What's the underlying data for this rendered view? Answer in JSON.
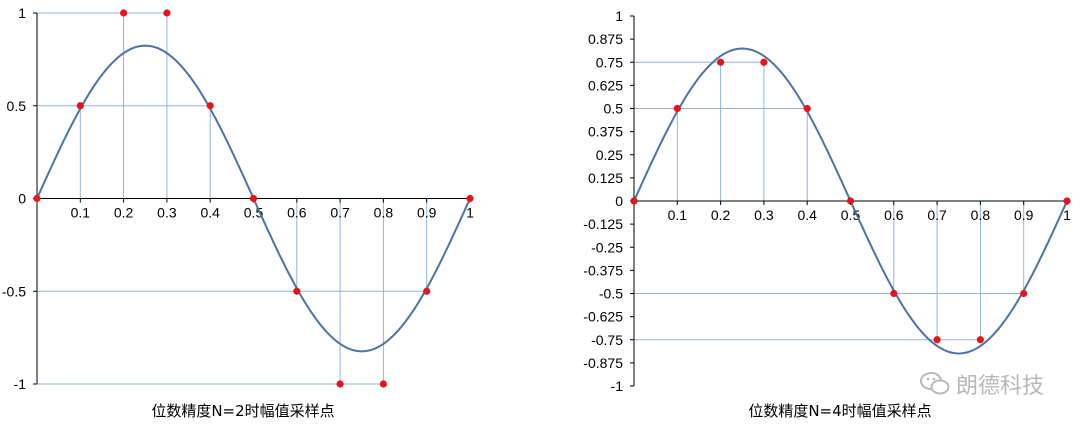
{
  "chart_data": [
    {
      "type": "line",
      "title": "位数精度N=2时幅值采样点",
      "series": [
        {
          "x": [
            0,
            0.05,
            0.1,
            0.15,
            0.2,
            0.25,
            0.3,
            0.35,
            0.4,
            0.45,
            0.5,
            0.55,
            0.6,
            0.65,
            0.7,
            0.75,
            0.8,
            0.85,
            0.9,
            0.95,
            1.0
          ],
          "values": [
            0,
            0.255,
            0.485,
            0.667,
            0.784,
            0.824,
            0.784,
            0.667,
            0.485,
            0.255,
            0,
            -0.255,
            -0.485,
            -0.667,
            -0.784,
            -0.824,
            -0.784,
            -0.667,
            -0.485,
            -0.255,
            0
          ]
        }
      ],
      "samples": {
        "x": [
          0,
          0.1,
          0.2,
          0.3,
          0.4,
          0.5,
          0.6,
          0.7,
          0.8,
          0.9,
          1.0
        ],
        "values": [
          0,
          0.5,
          1,
          1,
          0.5,
          0,
          -0.5,
          -1,
          -1,
          -0.5,
          0
        ]
      },
      "x_ticks": [
        "0.1",
        "0.2",
        "0.3",
        "0.4",
        "0.5",
        "0.6",
        "0.7",
        "0.8",
        "0.9",
        "1"
      ],
      "y_ticks": [
        "1",
        "0.5",
        "0",
        "-0.5",
        "-1"
      ],
      "xlim": [
        0,
        1
      ],
      "ylim": [
        -1,
        1
      ]
    },
    {
      "type": "line",
      "title": "位数精度N=4时幅值采样点",
      "series": [
        {
          "x": [
            0,
            0.05,
            0.1,
            0.15,
            0.2,
            0.25,
            0.3,
            0.35,
            0.4,
            0.45,
            0.5,
            0.55,
            0.6,
            0.65,
            0.7,
            0.75,
            0.8,
            0.85,
            0.9,
            0.95,
            1.0
          ],
          "values": [
            0,
            0.255,
            0.485,
            0.667,
            0.784,
            0.824,
            0.784,
            0.667,
            0.485,
            0.255,
            0,
            -0.255,
            -0.485,
            -0.667,
            -0.784,
            -0.824,
            -0.784,
            -0.667,
            -0.485,
            -0.255,
            0
          ]
        }
      ],
      "samples": {
        "x": [
          0,
          0.1,
          0.2,
          0.3,
          0.4,
          0.5,
          0.6,
          0.7,
          0.8,
          0.9,
          1.0
        ],
        "values": [
          0,
          0.5,
          0.75,
          0.75,
          0.5,
          0,
          -0.5,
          -0.75,
          -0.75,
          -0.5,
          0
        ]
      },
      "x_ticks": [
        "0.1",
        "0.2",
        "0.3",
        "0.4",
        "0.5",
        "0.6",
        "0.7",
        "0.8",
        "0.9",
        "1"
      ],
      "y_ticks": [
        "1",
        "0.875",
        "0.75",
        "0.625",
        "0.5",
        "0.375",
        "0.25",
        "0.125",
        "0",
        "-0.125",
        "-0.25",
        "-0.375",
        "-0.5",
        "-0.625",
        "-0.75",
        "-0.875",
        "-1"
      ],
      "xlim": [
        0,
        1
      ],
      "ylim": [
        -1,
        1
      ]
    }
  ],
  "colors": {
    "curve": "#4a73a8",
    "guide": "#8fb5de",
    "point": "#e8141b",
    "axis": "#000000"
  },
  "watermark": {
    "text": "朗德科技",
    "icon": "wechat-icon"
  }
}
